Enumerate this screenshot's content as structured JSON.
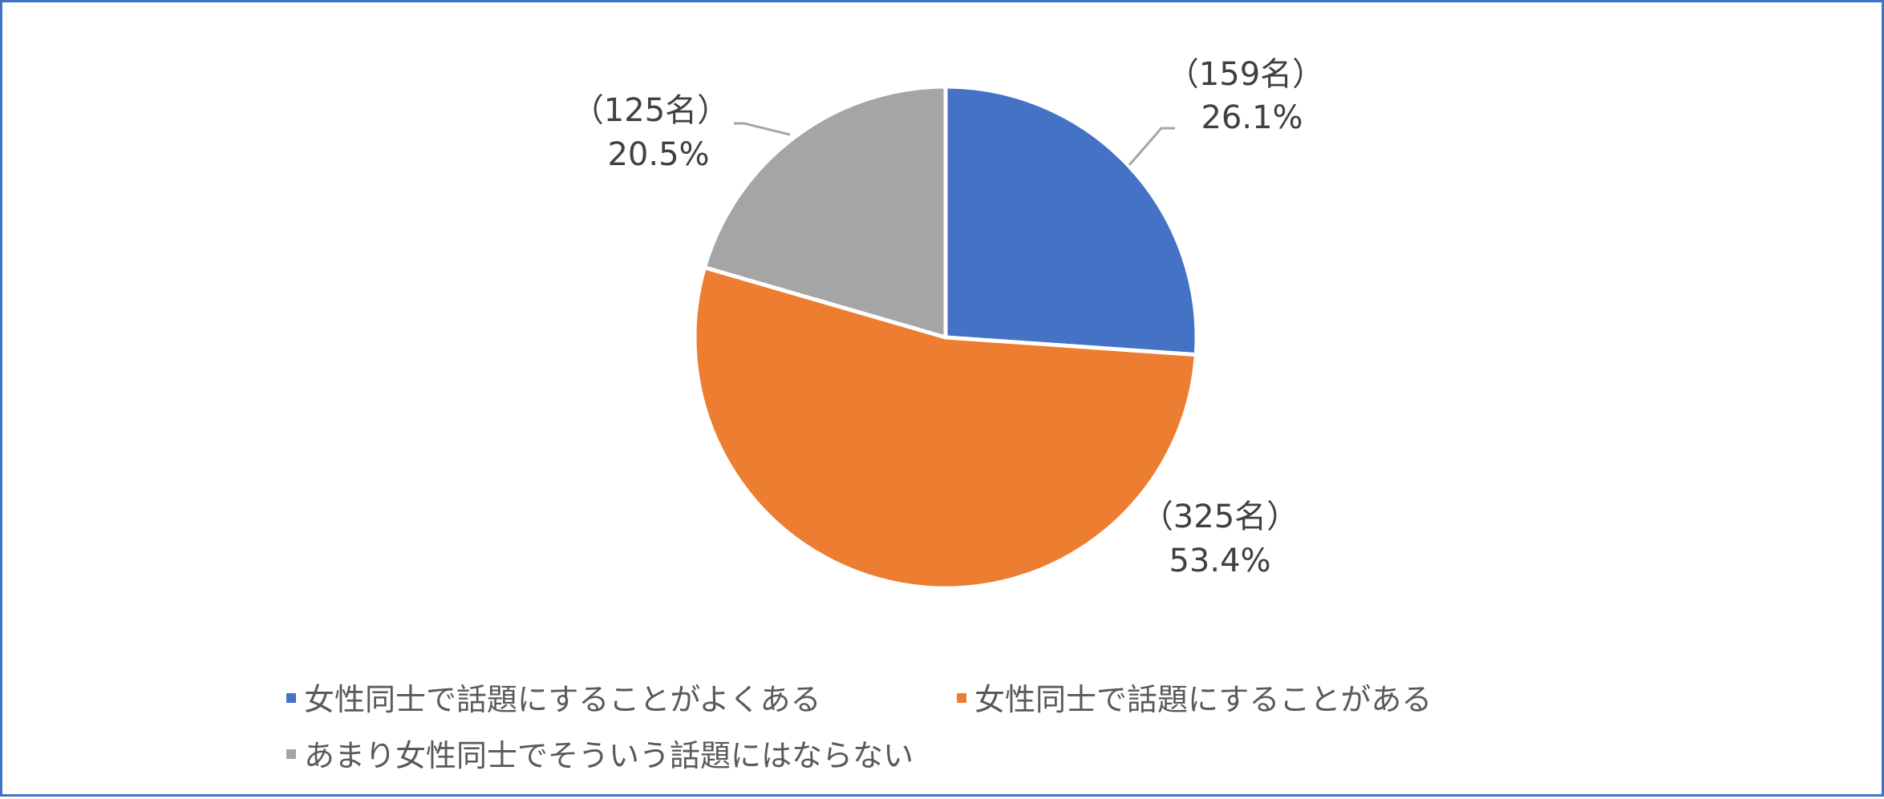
{
  "chart_data": {
    "type": "pie",
    "title": "",
    "start_angle_deg": 0,
    "direction": "clockwise",
    "legend_position": "bottom",
    "slices": [
      {
        "name": "女性同士で話題にすることがよくある",
        "value": 26.1,
        "count_label": "（159名）",
        "percent_label": "26.1%",
        "color": "#4472c4"
      },
      {
        "name": "女性同士で話題にすることがある",
        "value": 53.4,
        "count_label": "（325名）",
        "percent_label": "53.4%",
        "color": "#ed7d31"
      },
      {
        "name": "あまり女性同士でそういう話題にはならない",
        "value": 20.5,
        "count_label": "（125名）",
        "percent_label": "20.5%",
        "color": "#a5a5a5"
      }
    ]
  }
}
